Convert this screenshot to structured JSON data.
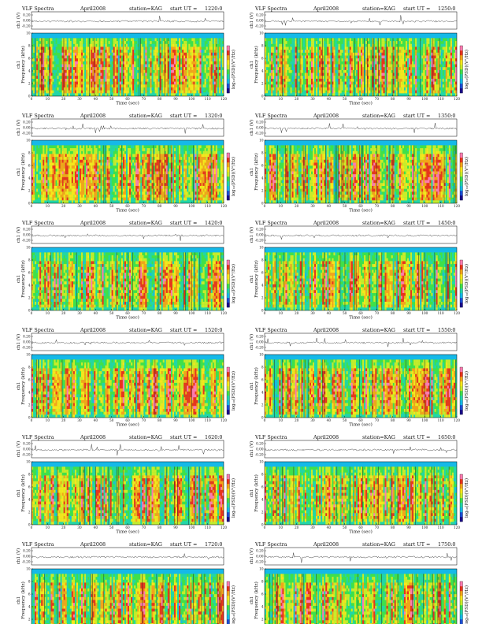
{
  "layout": {
    "columns": 2,
    "rows": 6
  },
  "common": {
    "title_prefix": "VLF Spectra",
    "date": "April2008",
    "station": "station=KAG",
    "ut_prefix": "start  UT  =",
    "trace_ylabel": "ch1 (V)",
    "trace_ticks": [
      "0.20",
      "0.00",
      "-0.20"
    ],
    "spec_ylabel": "Frequency  (kHz)",
    "spec_ylabel2": "ch1",
    "spec_yticks": [
      "0",
      "2",
      "4",
      "6",
      "8",
      "10"
    ],
    "xlabel": "Time  (sec)",
    "xticks": [
      "0",
      "10",
      "20",
      "30",
      "40",
      "50",
      "60",
      "70",
      "80",
      "90",
      "100",
      "110",
      "120"
    ],
    "cbar_label": "log₁₀(PSD)(V²/Hz)"
  },
  "colors": {
    "colormap": [
      "#1a0a8c",
      "#1c4fd6",
      "#15b9e8",
      "#22d6a8",
      "#3fe04a",
      "#c8ec2a",
      "#f7e61c",
      "#f4a41a",
      "#e8341c",
      "#ff7ab0"
    ],
    "trace": "#333333",
    "band": "#3fe04a",
    "top_band": "#15b9e8"
  },
  "chart_data": [
    {
      "type": "heatmap",
      "panel": "1",
      "ut": "1220:0",
      "x": [
        0,
        120
      ],
      "ylim_khz": [
        0,
        10
      ],
      "activity": 0.55
    },
    {
      "type": "heatmap",
      "panel": "2",
      "ut": "1250:0",
      "x": [
        0,
        120
      ],
      "ylim_khz": [
        0,
        10
      ],
      "activity": 0.55
    },
    {
      "type": "heatmap",
      "panel": "3",
      "ut": "1320:0",
      "x": [
        0,
        120
      ],
      "ylim_khz": [
        0,
        10
      ],
      "activity": 0.6
    },
    {
      "type": "heatmap",
      "panel": "4",
      "ut": "1350:0",
      "x": [
        0,
        120
      ],
      "ylim_khz": [
        0,
        10
      ],
      "activity": 0.6
    },
    {
      "type": "heatmap",
      "panel": "5",
      "ut": "1420:0",
      "x": [
        0,
        120
      ],
      "ylim_khz": [
        0,
        10
      ],
      "activity": 0.45
    },
    {
      "type": "heatmap",
      "panel": "6",
      "ut": "1450:0",
      "x": [
        0,
        120
      ],
      "ylim_khz": [
        0,
        10
      ],
      "activity": 0.45
    },
    {
      "type": "heatmap",
      "panel": "7",
      "ut": "1520:0",
      "x": [
        0,
        120
      ],
      "ylim_khz": [
        0,
        10
      ],
      "activity": 0.65
    },
    {
      "type": "heatmap",
      "panel": "8",
      "ut": "1550:0",
      "x": [
        0,
        120
      ],
      "ylim_khz": [
        0,
        10
      ],
      "activity": 0.6
    },
    {
      "type": "heatmap",
      "panel": "9",
      "ut": "1620:0",
      "x": [
        0,
        120
      ],
      "ylim_khz": [
        0,
        10
      ],
      "activity": 0.5
    },
    {
      "type": "heatmap",
      "panel": "10",
      "ut": "1650:0",
      "x": [
        0,
        120
      ],
      "ylim_khz": [
        0,
        10
      ],
      "activity": 0.5
    },
    {
      "type": "heatmap",
      "panel": "11",
      "ut": "1720:0",
      "x": [
        0,
        120
      ],
      "ylim_khz": [
        0,
        10
      ],
      "activity": 0.45
    },
    {
      "type": "heatmap",
      "panel": "12",
      "ut": "1750:0",
      "x": [
        0,
        120
      ],
      "ylim_khz": [
        0,
        10
      ],
      "activity": 0.35
    }
  ]
}
